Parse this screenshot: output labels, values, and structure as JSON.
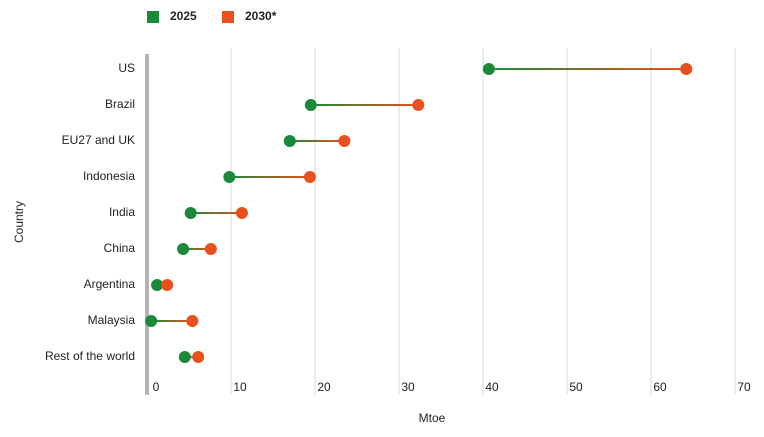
{
  "chart_data": {
    "type": "dumbbell",
    "x_label": "Mtoe",
    "y_label": "Country",
    "categories": [
      "US",
      "Brazil",
      "EU27 and UK",
      "Indonesia",
      "India",
      "China",
      "Argentina",
      "Malaysia",
      "Rest of the world"
    ],
    "series": [
      {
        "name": "2025",
        "color": "#1a8a3a",
        "values": [
          40.7,
          19.5,
          17.0,
          9.8,
          5.2,
          4.3,
          1.2,
          0.5,
          4.5
        ]
      },
      {
        "name": "2030*",
        "color": "#e8501e",
        "values": [
          64.2,
          32.3,
          23.5,
          19.4,
          11.3,
          7.6,
          2.4,
          5.4,
          6.1
        ]
      }
    ],
    "xlim": [
      0,
      70
    ],
    "xticks": [
      0,
      10,
      20,
      30,
      40,
      50,
      60,
      70
    ],
    "grid": true
  }
}
